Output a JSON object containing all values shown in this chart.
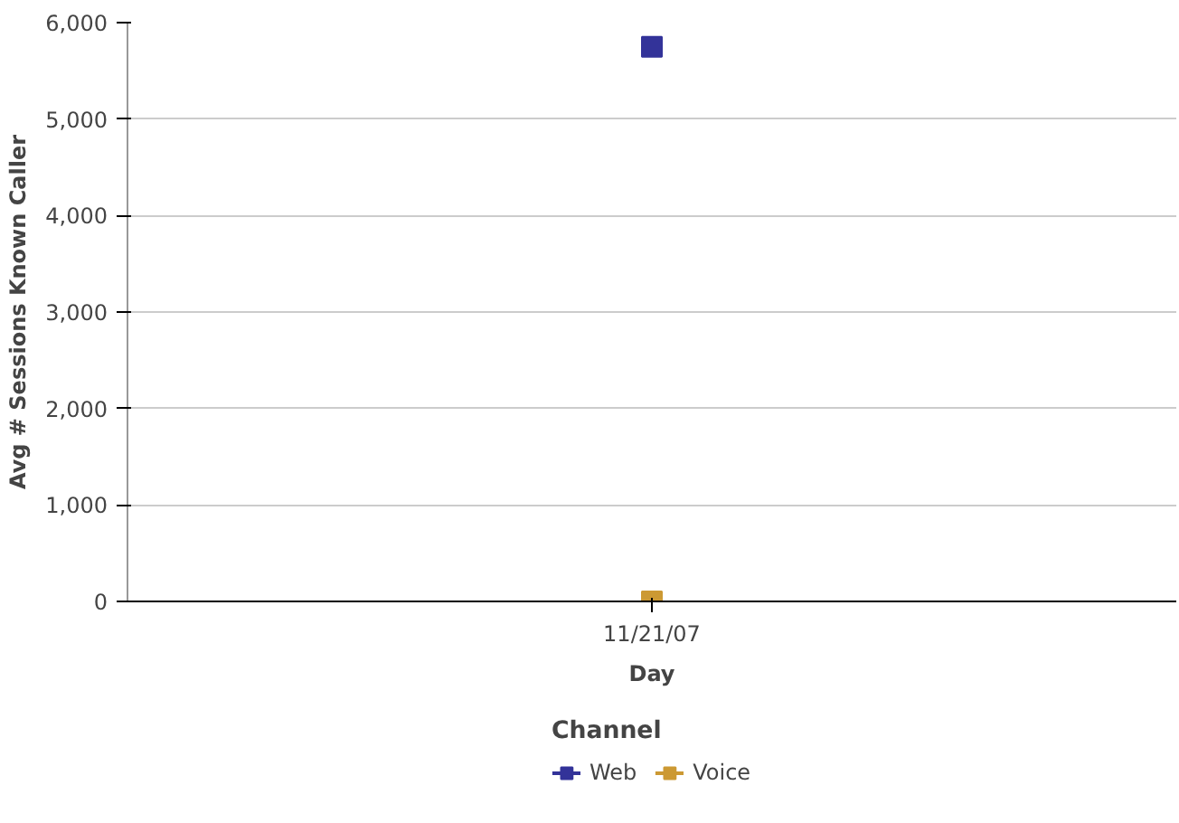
{
  "chart_data": {
    "type": "line",
    "xlabel": "Day",
    "ylabel": "Avg # Sessions Known Caller",
    "legend_title": "Channel",
    "categories": [
      "11/21/07"
    ],
    "series": [
      {
        "name": "Web",
        "color": "#333399",
        "values": [
          5750
        ]
      },
      {
        "name": "Voice",
        "color": "#cc9933",
        "values": [
          0
        ]
      }
    ],
    "ylim": [
      0,
      6000
    ],
    "yticks": [
      {
        "value": 0,
        "label": "0"
      },
      {
        "value": 1000,
        "label": "1,000"
      },
      {
        "value": 2000,
        "label": "2,000"
      },
      {
        "value": 3000,
        "label": "3,000"
      },
      {
        "value": 4000,
        "label": "4,000"
      },
      {
        "value": 5000,
        "label": "5,000"
      },
      {
        "value": 6000,
        "label": "6,000"
      }
    ],
    "grid": "y",
    "legend": "bottom",
    "marker": "square"
  }
}
